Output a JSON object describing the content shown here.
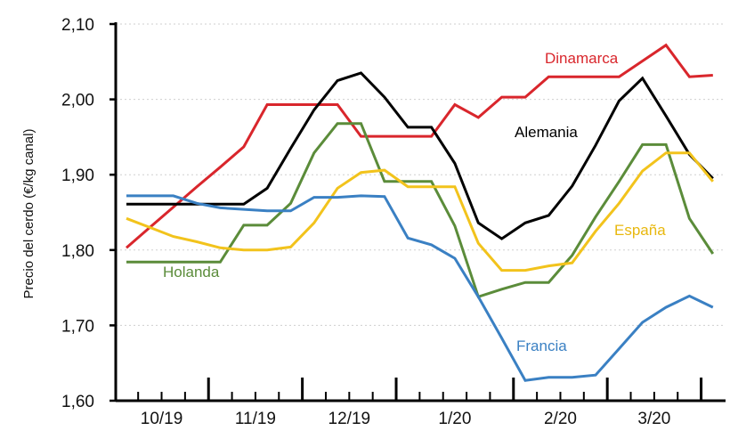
{
  "chart_data": {
    "type": "line",
    "title": "",
    "xlabel": "",
    "ylabel": "Precio del cerdo (€/kg canal)",
    "ylim": [
      1.6,
      2.1
    ],
    "yticks": [
      "1,60",
      "1,70",
      "1,80",
      "1,90",
      "2,00",
      "2,10"
    ],
    "ytick_values": [
      1.6,
      1.7,
      1.8,
      1.9,
      2.0,
      2.1
    ],
    "grid": "horizontal dotted",
    "x_unit": "week",
    "x": [
      1,
      2,
      3,
      4,
      5,
      6,
      7,
      8,
      9,
      10,
      11,
      12,
      13,
      14,
      15,
      16,
      17,
      18,
      19,
      20,
      21,
      22,
      23,
      24,
      25,
      26
    ],
    "month_labels": [
      "10/19",
      "11/19",
      "12/19",
      "1/20",
      "2/20",
      "3/20"
    ],
    "series": [
      {
        "name": "Dinamarca",
        "color": "#d9262c",
        "values": [
          1.803,
          1.83,
          1.857,
          1.884,
          1.91,
          1.937,
          1.993,
          1.993,
          1.993,
          1.993,
          1.951,
          1.951,
          1.951,
          1.951,
          1.993,
          1.976,
          2.003,
          2.003,
          2.03,
          2.03,
          2.03,
          2.03,
          2.051,
          2.072,
          2.03,
          2.032
        ]
      },
      {
        "name": "Alemania",
        "color": "#000000",
        "values": [
          1.861,
          1.861,
          1.861,
          1.861,
          1.861,
          1.861,
          1.882,
          1.935,
          1.986,
          2.025,
          2.035,
          2.003,
          1.963,
          1.963,
          1.915,
          1.836,
          1.815,
          1.836,
          1.846,
          1.885,
          1.939,
          1.998,
          2.028,
          1.978,
          1.927,
          1.895
        ]
      },
      {
        "name": "Holanda",
        "color": "#5b8c3a",
        "values": [
          1.784,
          1.784,
          1.784,
          1.784,
          1.784,
          1.833,
          1.833,
          1.862,
          1.929,
          1.968,
          1.968,
          1.891,
          1.891,
          1.891,
          1.832,
          1.738,
          1.748,
          1.757,
          1.757,
          1.793,
          1.844,
          1.891,
          1.94,
          1.94,
          1.842,
          1.795
        ]
      },
      {
        "name": "España",
        "color": "#f2c31c",
        "values": [
          1.842,
          1.83,
          1.818,
          1.811,
          1.803,
          1.8,
          1.8,
          1.804,
          1.836,
          1.882,
          1.903,
          1.906,
          1.884,
          1.884,
          1.884,
          1.809,
          1.773,
          1.773,
          1.779,
          1.783,
          1.825,
          1.862,
          1.905,
          1.929,
          1.929,
          1.891
        ]
      },
      {
        "name": "Francia",
        "color": "#3a80c3",
        "values": [
          1.872,
          1.872,
          1.872,
          1.862,
          1.856,
          1.854,
          1.852,
          1.852,
          1.87,
          1.87,
          1.872,
          1.871,
          1.816,
          1.807,
          1.789,
          1.738,
          1.683,
          1.627,
          1.631,
          1.631,
          1.634,
          1.669,
          1.704,
          1.724,
          1.739,
          1.724
        ]
      }
    ]
  }
}
